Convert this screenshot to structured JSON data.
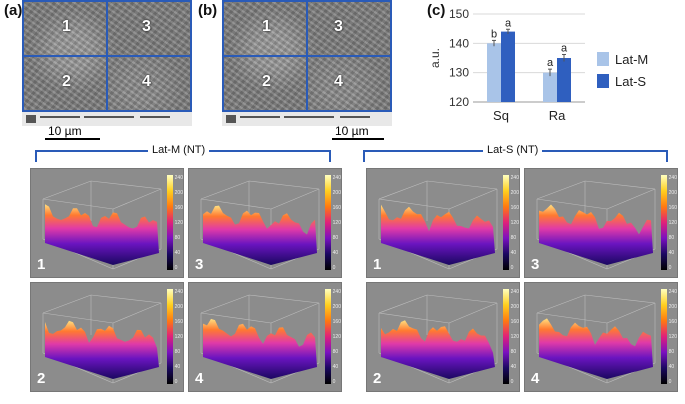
{
  "panels": {
    "a": "(a)",
    "b": "(b)",
    "c": "(c)"
  },
  "sem_quadrants": [
    "1",
    "3",
    "2",
    "4"
  ],
  "scale_bar": "10 µm",
  "groups": {
    "left": "Lat-M (NT)",
    "right": "Lat-S (NT)"
  },
  "surface_numbers": [
    "1",
    "3",
    "2",
    "4"
  ],
  "colorbar_ticks": [
    "240",
    "220",
    "200",
    "180",
    "160",
    "140",
    "120",
    "100",
    "80",
    "60",
    "40",
    "20",
    "0"
  ],
  "chart_data": {
    "type": "bar",
    "categories": [
      "Sq",
      "Ra"
    ],
    "series": [
      {
        "name": "Lat-M",
        "values": [
          140,
          130
        ],
        "errors": [
          1,
          1.2
        ],
        "letters": [
          "b",
          "a"
        ],
        "color": "#a9c4e8"
      },
      {
        "name": "Lat-S",
        "values": [
          144,
          135
        ],
        "errors": [
          0.8,
          1.2
        ],
        "letters": [
          "a",
          "a"
        ],
        "color": "#2f5fbf"
      }
    ],
    "ylabel": "a.u.",
    "ylim": [
      120,
      150
    ],
    "yticks": [
      "120",
      "130",
      "140",
      "150"
    ],
    "legend": "right",
    "grid": true
  }
}
